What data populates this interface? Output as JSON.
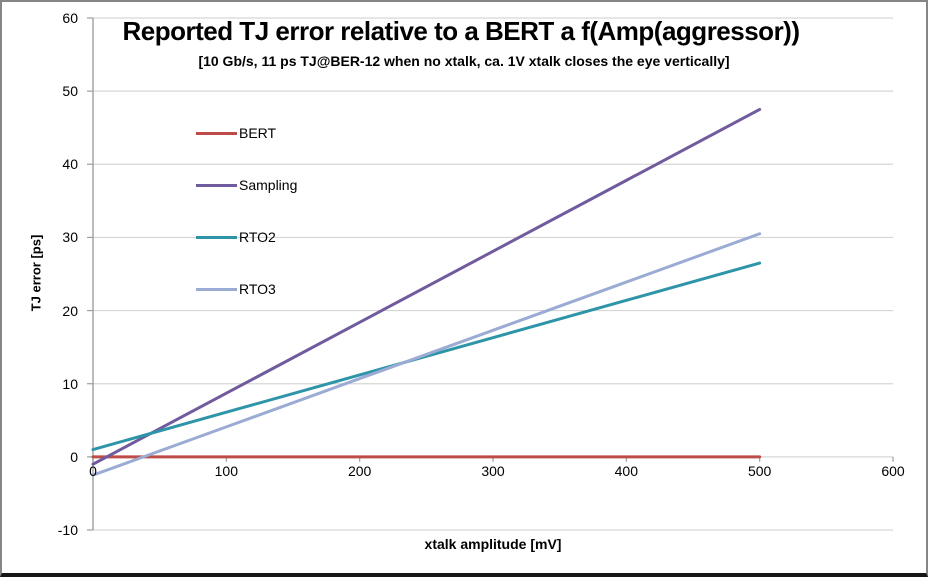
{
  "chart_data": {
    "type": "line",
    "title": "Reported TJ error relative to a BERT a f(Amp(aggressor))",
    "subtitle": "[10 Gb/s, 11 ps TJ@BER-12 when no xtalk, ca. 1V xtalk closes the eye vertically]",
    "xlabel": "xtalk amplitude [mV]",
    "ylabel": "TJ error [ps]",
    "xlim": [
      0,
      600
    ],
    "ylim": [
      -10,
      60
    ],
    "xticks": [
      0,
      100,
      200,
      300,
      400,
      500,
      600
    ],
    "yticks": [
      60,
      50,
      40,
      30,
      20,
      10,
      0,
      -10
    ],
    "grid": "horizontal",
    "legend_position": "inside-top-left",
    "x": [
      0,
      100,
      200,
      300,
      400,
      500
    ],
    "series": [
      {
        "name": "BERT",
        "color": "#BE4B48",
        "values": [
          0,
          0,
          0,
          0,
          0,
          0
        ]
      },
      {
        "name": "Sampling",
        "color": "#6F5B9D",
        "values": [
          -1,
          8.7,
          18.4,
          28.1,
          37.8,
          47.5
        ]
      },
      {
        "name": "RTO2",
        "color": "#2E95A8",
        "values": [
          1,
          6.1,
          11.2,
          16.3,
          21.4,
          26.5
        ]
      },
      {
        "name": "RTO3",
        "color": "#9AABD4",
        "values": [
          -2.5,
          4.1,
          10.7,
          17.3,
          23.9,
          30.5
        ]
      }
    ],
    "colors": {
      "gridline": "#D6D6D6",
      "axis": "#9E9E9E",
      "text": "#000000",
      "background": "#FFFFFF"
    }
  }
}
